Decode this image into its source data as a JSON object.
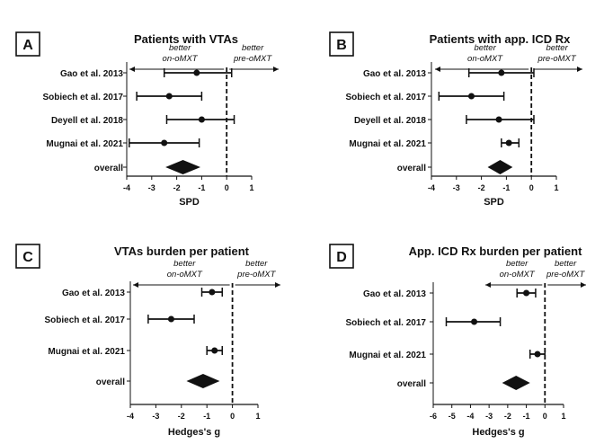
{
  "chart_data": [
    {
      "type": "forest",
      "panel_letter": "A",
      "title": "Patients with VTAs",
      "xlabel": "SPD",
      "xlim": [
        -4,
        1
      ],
      "xticks": [
        "-4",
        "-3",
        "-2",
        "-1",
        "0",
        "1"
      ],
      "xtick_values": [
        -4,
        -3,
        -2,
        -1,
        0,
        1
      ],
      "annotation_left": [
        "better",
        "on-oMXT"
      ],
      "annotation_right": [
        "better",
        "pre-oMXT"
      ],
      "studies": [
        {
          "label": "Gao et al. 2013",
          "estimate": -1.2,
          "ci": [
            -2.5,
            0.2
          ]
        },
        {
          "label": "Sobiech et al. 2017",
          "estimate": -2.3,
          "ci": [
            -3.6,
            -1.0
          ]
        },
        {
          "label": "Deyell et al. 2018",
          "estimate": -1.0,
          "ci": [
            -2.4,
            0.3
          ]
        },
        {
          "label": "Mugnai et al. 2021",
          "estimate": -2.5,
          "ci": [
            -3.9,
            -1.1
          ]
        }
      ],
      "overall": {
        "label": "overall",
        "estimate": -1.75,
        "ci": [
          -2.45,
          -1.05
        ]
      }
    },
    {
      "type": "forest",
      "panel_letter": "B",
      "title": "Patients with app. ICD Rx",
      "xlabel": "SPD",
      "xlim": [
        -4,
        1
      ],
      "xticks": [
        "-4",
        "-3",
        "-2",
        "-1",
        "0",
        "1"
      ],
      "xtick_values": [
        -4,
        -3,
        -2,
        -1,
        0,
        1
      ],
      "annotation_left": [
        "better",
        "on-oMXT"
      ],
      "annotation_right": [
        "better",
        "pre-oMXT"
      ],
      "studies": [
        {
          "label": "Gao et al. 2013",
          "estimate": -1.2,
          "ci": [
            -2.5,
            0.1
          ]
        },
        {
          "label": "Sobiech et al. 2017",
          "estimate": -2.4,
          "ci": [
            -3.7,
            -1.1
          ]
        },
        {
          "label": "Deyell et al. 2018",
          "estimate": -1.3,
          "ci": [
            -2.6,
            0.1
          ]
        },
        {
          "label": "Mugnai et al. 2021",
          "estimate": -0.9,
          "ci": [
            -1.2,
            -0.5
          ]
        }
      ],
      "overall": {
        "label": "overall",
        "estimate": -1.25,
        "ci": [
          -1.75,
          -0.75
        ]
      }
    },
    {
      "type": "forest",
      "panel_letter": "C",
      "title": "VTAs burden per patient",
      "xlabel": "Hedges's g",
      "xlim": [
        -4,
        1
      ],
      "xticks": [
        "-4",
        "-3",
        "-2",
        "-1",
        "0",
        "1"
      ],
      "xtick_values": [
        -4,
        -3,
        -2,
        -1,
        0,
        1
      ],
      "annotation_left": [
        "better",
        "on-oMXT"
      ],
      "annotation_right": [
        "better",
        "pre-oMXT"
      ],
      "studies": [
        {
          "label": "Gao et al. 2013",
          "estimate": -0.8,
          "ci": [
            -1.2,
            -0.4
          ]
        },
        {
          "label": "Sobiech et al. 2017",
          "estimate": -2.4,
          "ci": [
            -3.3,
            -1.5
          ]
        },
        {
          "label": "Mugnai et al. 2021",
          "estimate": -0.7,
          "ci": [
            -1.0,
            -0.4
          ]
        }
      ],
      "overall": {
        "label": "overall",
        "estimate": -1.15,
        "ci": [
          -1.8,
          -0.5
        ]
      }
    },
    {
      "type": "forest",
      "panel_letter": "D",
      "title": "App. ICD Rx burden per patient",
      "xlabel": "Hedges's g",
      "xlim": [
        -6,
        1
      ],
      "xticks": [
        "-6",
        "-5",
        "-4",
        "-3",
        "-2",
        "-1",
        "0",
        "1"
      ],
      "xtick_values": [
        -6,
        -5,
        -4,
        -3,
        -2,
        -1,
        0,
        1
      ],
      "annotation_left": [
        "better",
        "on-oMXT"
      ],
      "annotation_right": [
        "better",
        "pre-oMXT"
      ],
      "studies": [
        {
          "label": "Gao et al. 2013",
          "estimate": -1.0,
          "ci": [
            -1.5,
            -0.5
          ]
        },
        {
          "label": "Sobiech et al. 2017",
          "estimate": -3.8,
          "ci": [
            -5.3,
            -2.4
          ]
        },
        {
          "label": "Mugnai et al. 2021",
          "estimate": -0.4,
          "ci": [
            -0.8,
            0.0
          ]
        }
      ],
      "overall": {
        "label": "overall",
        "estimate": -1.55,
        "ci": [
          -2.3,
          -0.8
        ]
      }
    }
  ]
}
